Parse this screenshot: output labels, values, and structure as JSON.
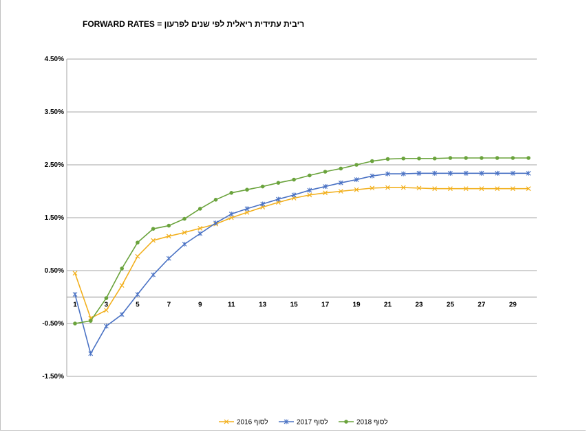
{
  "chart_data": {
    "type": "line",
    "title": "ריבית עתידית ריאלית לפי שנים לפרעון = FORWARD RATES",
    "xlabel": "",
    "ylabel": "",
    "x": [
      1,
      2,
      3,
      4,
      5,
      6,
      7,
      8,
      9,
      10,
      11,
      12,
      13,
      14,
      15,
      16,
      17,
      18,
      19,
      20,
      21,
      22,
      23,
      24,
      25,
      26,
      27,
      28,
      29,
      30
    ],
    "x_tick_labels": [
      "1",
      "3",
      "5",
      "7",
      "9",
      "11",
      "13",
      "15",
      "17",
      "19",
      "21",
      "23",
      "25",
      "27",
      "29"
    ],
    "y_ticks": [
      "4.50%",
      "3.50%",
      "2.50%",
      "1.50%",
      "0.50%",
      "-0.50%",
      "-1.50%"
    ],
    "ylim": [
      -1.5,
      4.5
    ],
    "grid": true,
    "legend_position": "bottom",
    "series": [
      {
        "name": "לסוף 2016",
        "color": "#f2b01e",
        "marker": "x",
        "values": [
          0.45,
          -0.4,
          -0.25,
          0.22,
          0.77,
          1.07,
          1.15,
          1.22,
          1.3,
          1.38,
          1.5,
          1.6,
          1.7,
          1.79,
          1.87,
          1.93,
          1.97,
          2.0,
          2.03,
          2.06,
          2.07,
          2.07,
          2.06,
          2.05,
          2.05,
          2.05,
          2.05,
          2.05,
          2.05,
          2.05
        ]
      },
      {
        "name": "לסוף 2017",
        "color": "#4a72c4",
        "marker": "star",
        "values": [
          0.05,
          -1.07,
          -0.55,
          -0.33,
          0.05,
          0.42,
          0.73,
          1.0,
          1.2,
          1.4,
          1.57,
          1.67,
          1.76,
          1.85,
          1.93,
          2.02,
          2.09,
          2.16,
          2.22,
          2.29,
          2.33,
          2.33,
          2.34,
          2.34,
          2.34,
          2.34,
          2.34,
          2.34,
          2.34,
          2.34
        ]
      },
      {
        "name": "לסוף 2018",
        "color": "#6aa33c",
        "marker": "circle",
        "values": [
          -0.5,
          -0.45,
          -0.02,
          0.54,
          1.03,
          1.29,
          1.35,
          1.48,
          1.67,
          1.84,
          1.97,
          2.03,
          2.09,
          2.16,
          2.22,
          2.3,
          2.37,
          2.43,
          2.5,
          2.57,
          2.61,
          2.62,
          2.62,
          2.62,
          2.63,
          2.63,
          2.63,
          2.63,
          2.63,
          2.63
        ]
      }
    ]
  }
}
